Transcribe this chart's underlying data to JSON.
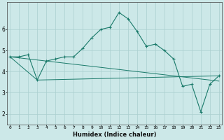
{
  "xlabel": "Humidex (Indice chaleur)",
  "x": [
    0,
    1,
    2,
    3,
    4,
    5,
    6,
    7,
    8,
    9,
    10,
    11,
    12,
    13,
    14,
    15,
    16,
    17,
    18,
    19,
    20,
    21,
    22,
    23
  ],
  "line1": [
    4.7,
    4.7,
    4.8,
    3.6,
    4.5,
    4.6,
    4.7,
    4.7,
    5.1,
    5.6,
    6.0,
    6.1,
    6.8,
    6.5,
    5.9,
    5.2,
    5.3,
    5.0,
    4.6,
    3.3,
    3.4,
    2.1,
    3.4,
    3.8
  ],
  "line_trend": [
    [
      0,
      4.7
    ],
    [
      23,
      3.55
    ]
  ],
  "line_floor": [
    [
      0,
      4.7
    ],
    [
      3,
      3.6
    ],
    [
      23,
      3.8
    ]
  ],
  "color": "#1a7a6a",
  "bg_color": "#cce8e8",
  "grid_color": "#aacfcf",
  "ylim": [
    1.5,
    7.3
  ],
  "yticks": [
    2,
    3,
    4,
    5,
    6
  ],
  "xlim": [
    -0.3,
    23.3
  ]
}
